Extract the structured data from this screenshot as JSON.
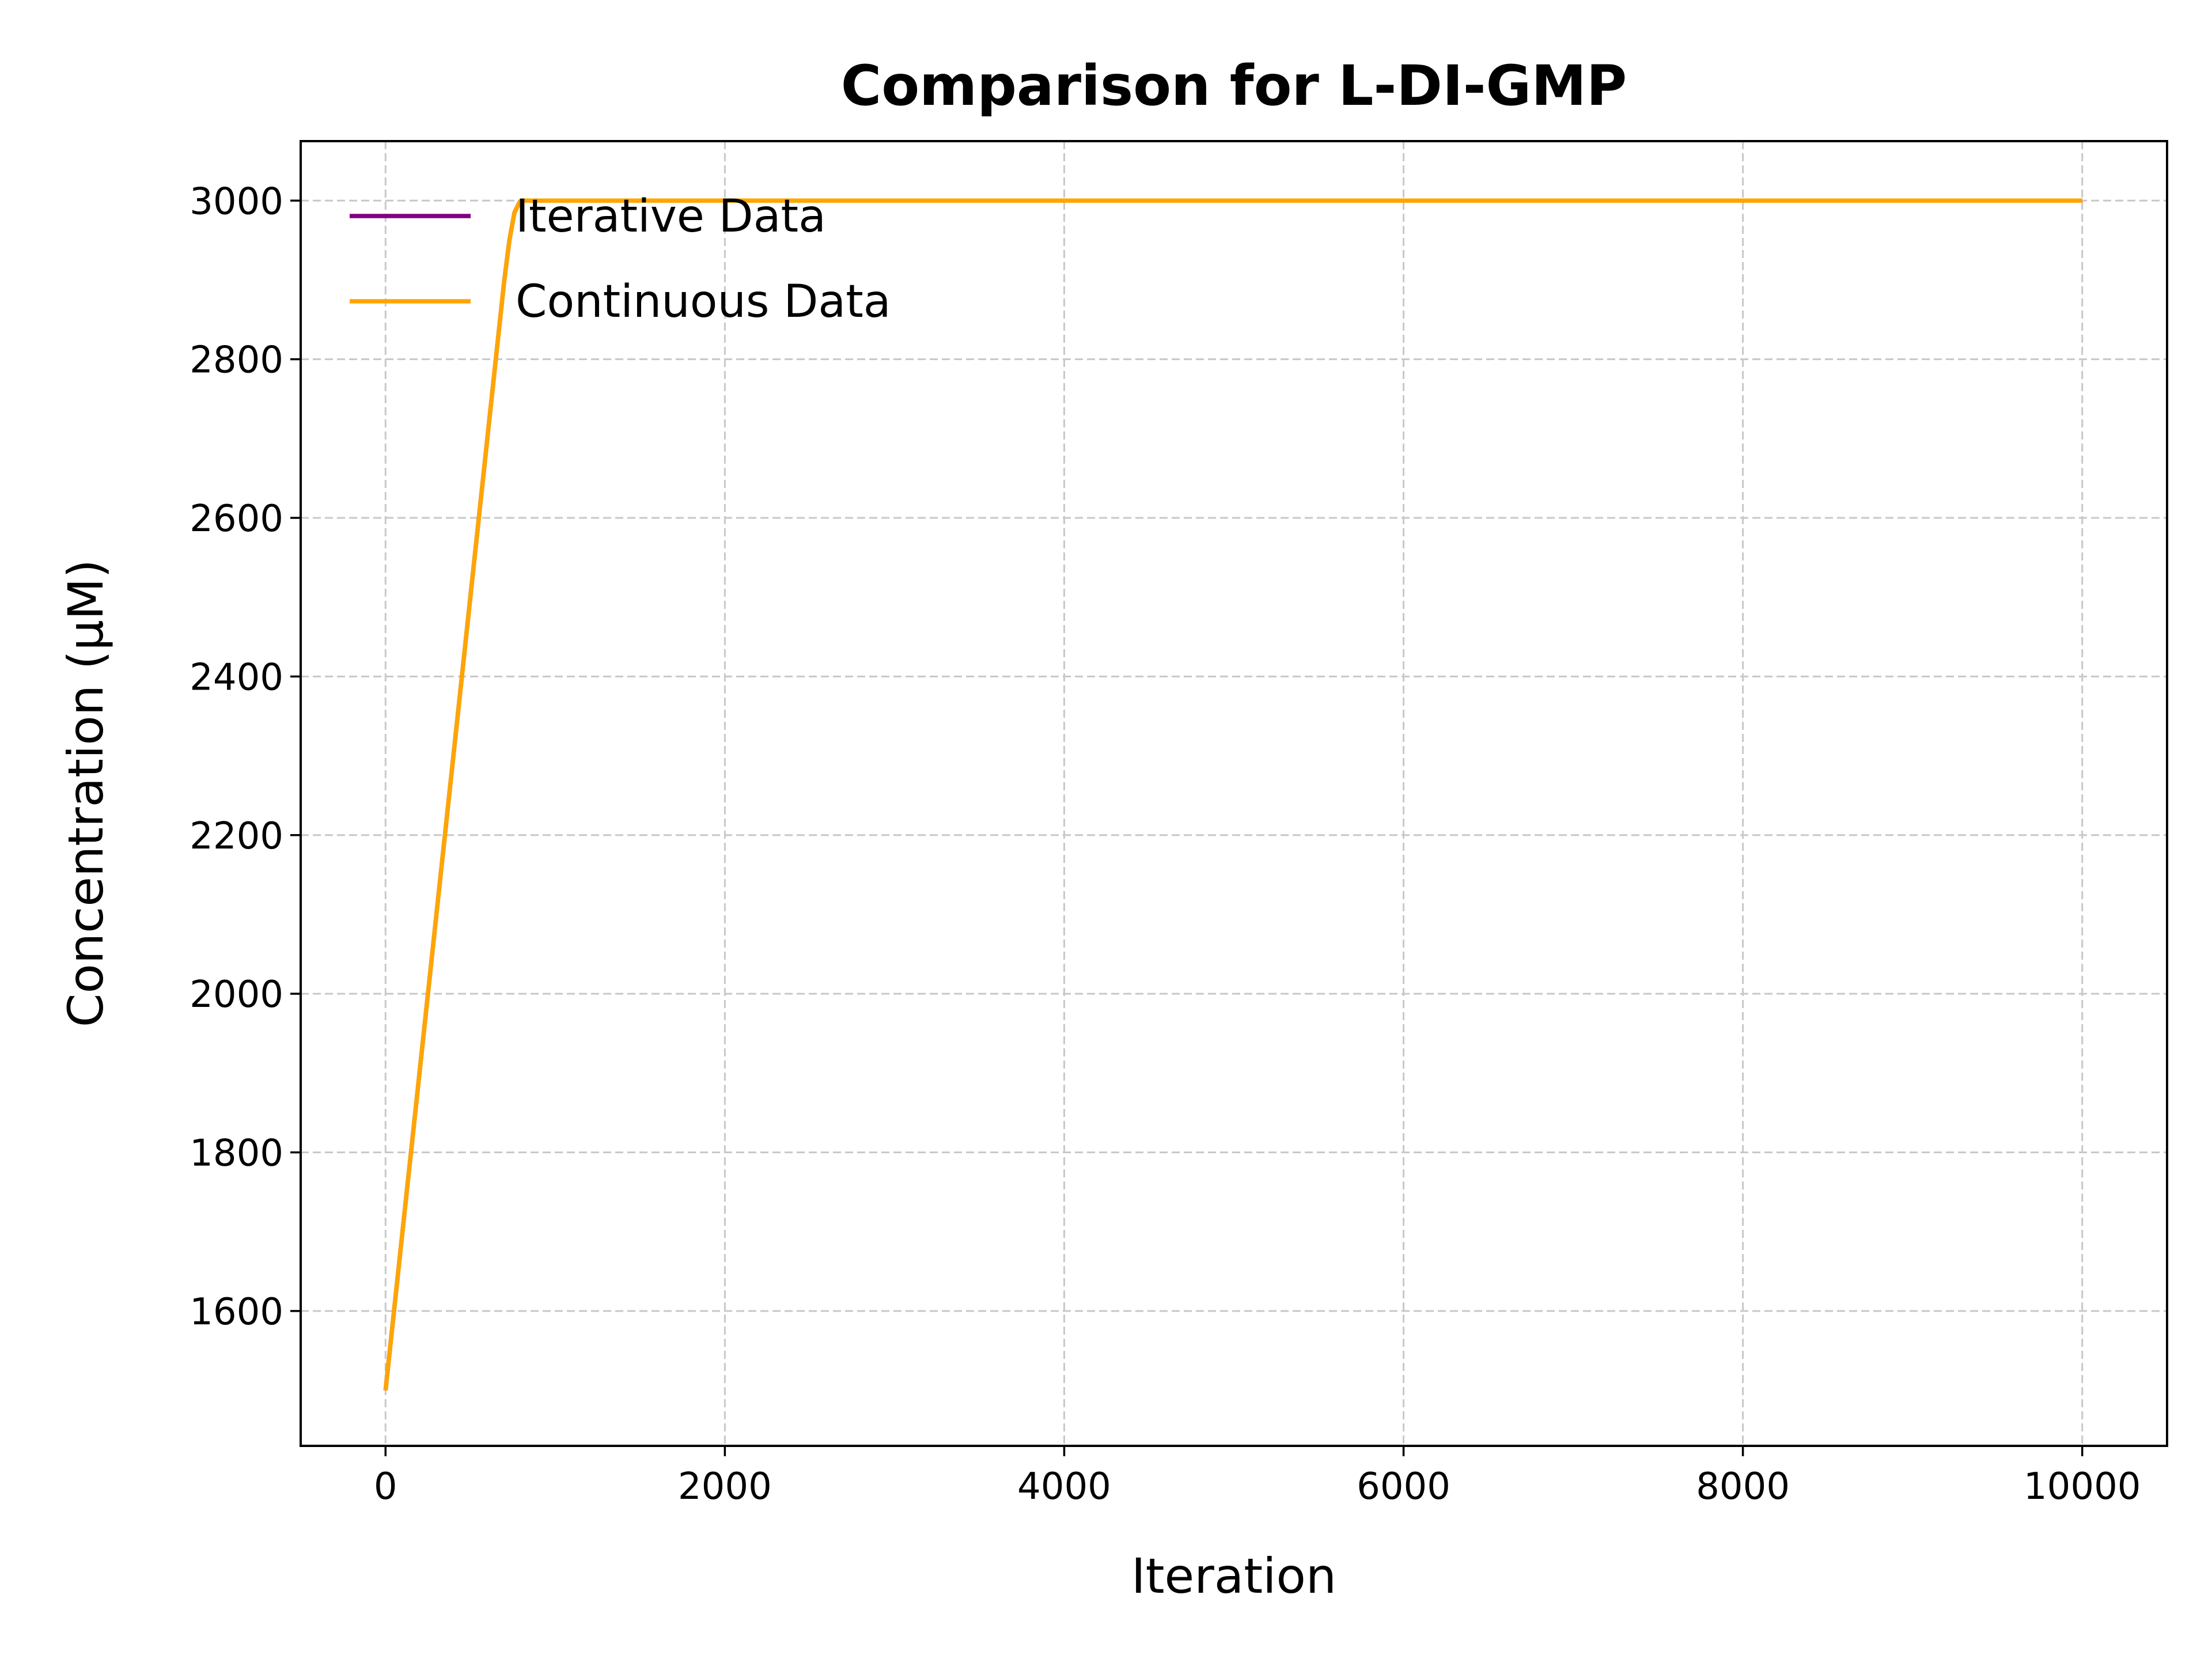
{
  "chart_data": {
    "type": "line",
    "title": "Comparison for L-DI-GMP",
    "xlabel": "Iteration",
    "ylabel": "Concentration (μM)",
    "xlim": [
      -500,
      10500
    ],
    "ylim": [
      1430,
      3075
    ],
    "xticks": [
      0,
      2000,
      4000,
      6000,
      8000,
      10000
    ],
    "yticks": [
      1600,
      1800,
      2000,
      2200,
      2400,
      2600,
      2800,
      3000
    ],
    "grid": true,
    "legend_position": "top-left",
    "series": [
      {
        "name": "Iterative Data",
        "color": "#800080",
        "x": [
          0,
          100,
          200,
          300,
          400,
          500,
          600,
          650,
          700,
          730,
          760,
          790,
          800,
          1000,
          2000,
          4000,
          6000,
          8000,
          10000
        ],
        "y": [
          1500,
          1700,
          1900,
          2100,
          2300,
          2500,
          2700,
          2800,
          2900,
          2950,
          2985,
          2998,
          3000,
          3000,
          3000,
          3000,
          3000,
          3000,
          3000
        ]
      },
      {
        "name": "Continuous Data",
        "color": "#FFA500",
        "x": [
          0,
          100,
          200,
          300,
          400,
          500,
          600,
          650,
          700,
          730,
          760,
          790,
          800,
          1000,
          2000,
          4000,
          6000,
          8000,
          10000
        ],
        "y": [
          1500,
          1700,
          1900,
          2100,
          2300,
          2500,
          2700,
          2800,
          2900,
          2950,
          2985,
          2998,
          3000,
          3000,
          3000,
          3000,
          3000,
          3000,
          3000
        ]
      }
    ]
  }
}
